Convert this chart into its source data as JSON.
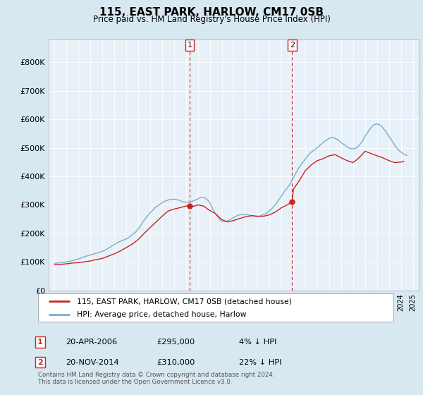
{
  "title": "115, EAST PARK, HARLOW, CM17 0SB",
  "subtitle": "Price paid vs. HM Land Registry's House Price Index (HPI)",
  "legend_line1": "115, EAST PARK, HARLOW, CM17 0SB (detached house)",
  "legend_line2": "HPI: Average price, detached house, Harlow",
  "footnote": "Contains HM Land Registry data © Crown copyright and database right 2024.\nThis data is licensed under the Open Government Licence v3.0.",
  "transaction1_date": "20-APR-2006",
  "transaction1_price": "£295,000",
  "transaction1_hpi": "4% ↓ HPI",
  "transaction1_year": 2006.3,
  "transaction1_value": 295000,
  "transaction2_date": "20-NOV-2014",
  "transaction2_price": "£310,000",
  "transaction2_hpi": "22% ↓ HPI",
  "transaction2_year": 2014.9,
  "transaction2_value": 310000,
  "background_color": "#d8e8f0",
  "plot_bg_color": "#e8f0f8",
  "red_line_color": "#cc2222",
  "blue_line_color": "#7aaecc",
  "vline_color": "#cc2222",
  "marker_color": "#cc2222",
  "ylim_min": 0,
  "ylim_max": 880000,
  "yticks": [
    0,
    100000,
    200000,
    300000,
    400000,
    500000,
    600000,
    700000,
    800000
  ],
  "ytick_labels": [
    "£0",
    "£100K",
    "£200K",
    "£300K",
    "£400K",
    "£500K",
    "£600K",
    "£700K",
    "£800K"
  ],
  "xmin": 1994.5,
  "xmax": 2025.5,
  "hpi_years": [
    1995,
    1995.25,
    1995.5,
    1995.75,
    1996,
    1996.25,
    1996.5,
    1996.75,
    1997,
    1997.25,
    1997.5,
    1997.75,
    1998,
    1998.25,
    1998.5,
    1998.75,
    1999,
    1999.25,
    1999.5,
    1999.75,
    2000,
    2000.25,
    2000.5,
    2000.75,
    2001,
    2001.25,
    2001.5,
    2001.75,
    2002,
    2002.25,
    2002.5,
    2002.75,
    2003,
    2003.25,
    2003.5,
    2003.75,
    2004,
    2004.25,
    2004.5,
    2004.75,
    2005,
    2005.25,
    2005.5,
    2005.75,
    2006,
    2006.25,
    2006.5,
    2006.75,
    2007,
    2007.25,
    2007.5,
    2007.75,
    2008,
    2008.25,
    2008.5,
    2008.75,
    2009,
    2009.25,
    2009.5,
    2009.75,
    2010,
    2010.25,
    2010.5,
    2010.75,
    2011,
    2011.25,
    2011.5,
    2011.75,
    2012,
    2012.25,
    2012.5,
    2012.75,
    2013,
    2013.25,
    2013.5,
    2013.75,
    2014,
    2014.25,
    2014.5,
    2014.75,
    2015,
    2015.25,
    2015.5,
    2015.75,
    2016,
    2016.25,
    2016.5,
    2016.75,
    2017,
    2017.25,
    2017.5,
    2017.75,
    2018,
    2018.25,
    2018.5,
    2018.75,
    2019,
    2019.25,
    2019.5,
    2019.75,
    2020,
    2020.25,
    2020.5,
    2020.75,
    2021,
    2021.25,
    2021.5,
    2021.75,
    2022,
    2022.25,
    2022.5,
    2022.75,
    2023,
    2023.25,
    2023.5,
    2023.75,
    2024,
    2024.25,
    2024.5
  ],
  "hpi_values": [
    95000,
    96000,
    97000,
    98000,
    100000,
    102000,
    104000,
    107000,
    110000,
    114000,
    118000,
    121000,
    124000,
    127000,
    130000,
    133000,
    137000,
    142000,
    148000,
    154000,
    161000,
    167000,
    172000,
    176000,
    180000,
    187000,
    195000,
    203000,
    215000,
    230000,
    246000,
    260000,
    272000,
    283000,
    293000,
    300000,
    307000,
    313000,
    317000,
    319000,
    320000,
    318000,
    315000,
    310000,
    309000,
    310000,
    312000,
    316000,
    321000,
    326000,
    326000,
    320000,
    307000,
    285000,
    267000,
    252000,
    242000,
    241000,
    244000,
    249000,
    256000,
    261000,
    265000,
    266000,
    266000,
    264000,
    262000,
    260000,
    259000,
    261000,
    266000,
    271000,
    279000,
    289000,
    301000,
    316000,
    331000,
    347000,
    360000,
    375000,
    395000,
    415000,
    433000,
    447000,
    460000,
    475000,
    485000,
    493000,
    500000,
    510000,
    519000,
    527000,
    533000,
    537000,
    533000,
    528000,
    518000,
    511000,
    503000,
    498000,
    496000,
    499000,
    508000,
    521000,
    540000,
    556000,
    571000,
    581000,
    584000,
    580000,
    570000,
    556000,
    540000,
    525000,
    508000,
    494000,
    485000,
    478000,
    473000
  ],
  "price_years": [
    1995,
    1995.5,
    1996,
    1996.5,
    1997,
    1997.5,
    1998,
    1998.5,
    1999,
    1999.5,
    2000,
    2000.5,
    2001,
    2001.5,
    2002,
    2002.5,
    2003,
    2003.5,
    2004,
    2004.5,
    2005,
    2005.5,
    2006,
    2006.25,
    2006.3,
    2006.5,
    2006.75,
    2007,
    2007.5,
    2008,
    2008.5,
    2009,
    2009.5,
    2010,
    2010.5,
    2011,
    2011.5,
    2012,
    2012.5,
    2013,
    2013.5,
    2014,
    2014.5,
    2014.75,
    2014.9,
    2015,
    2015.5,
    2016,
    2016.5,
    2017,
    2017.5,
    2018,
    2018.5,
    2019,
    2019.5,
    2020,
    2020.5,
    2021,
    2021.5,
    2022,
    2022.5,
    2023,
    2023.5,
    2024,
    2024.25
  ],
  "price_values": [
    90000,
    91000,
    93000,
    96000,
    97000,
    100000,
    103000,
    108000,
    112000,
    120000,
    128000,
    138000,
    150000,
    162000,
    178000,
    200000,
    220000,
    240000,
    260000,
    278000,
    285000,
    290000,
    296000,
    295000,
    295000,
    295000,
    296000,
    300000,
    295000,
    280000,
    268000,
    248000,
    240000,
    245000,
    252000,
    258000,
    262000,
    260000,
    260000,
    265000,
    275000,
    290000,
    300000,
    308000,
    310000,
    355000,
    385000,
    420000,
    440000,
    455000,
    462000,
    472000,
    476000,
    465000,
    455000,
    448000,
    465000,
    488000,
    480000,
    472000,
    465000,
    455000,
    448000,
    450000,
    452000
  ]
}
